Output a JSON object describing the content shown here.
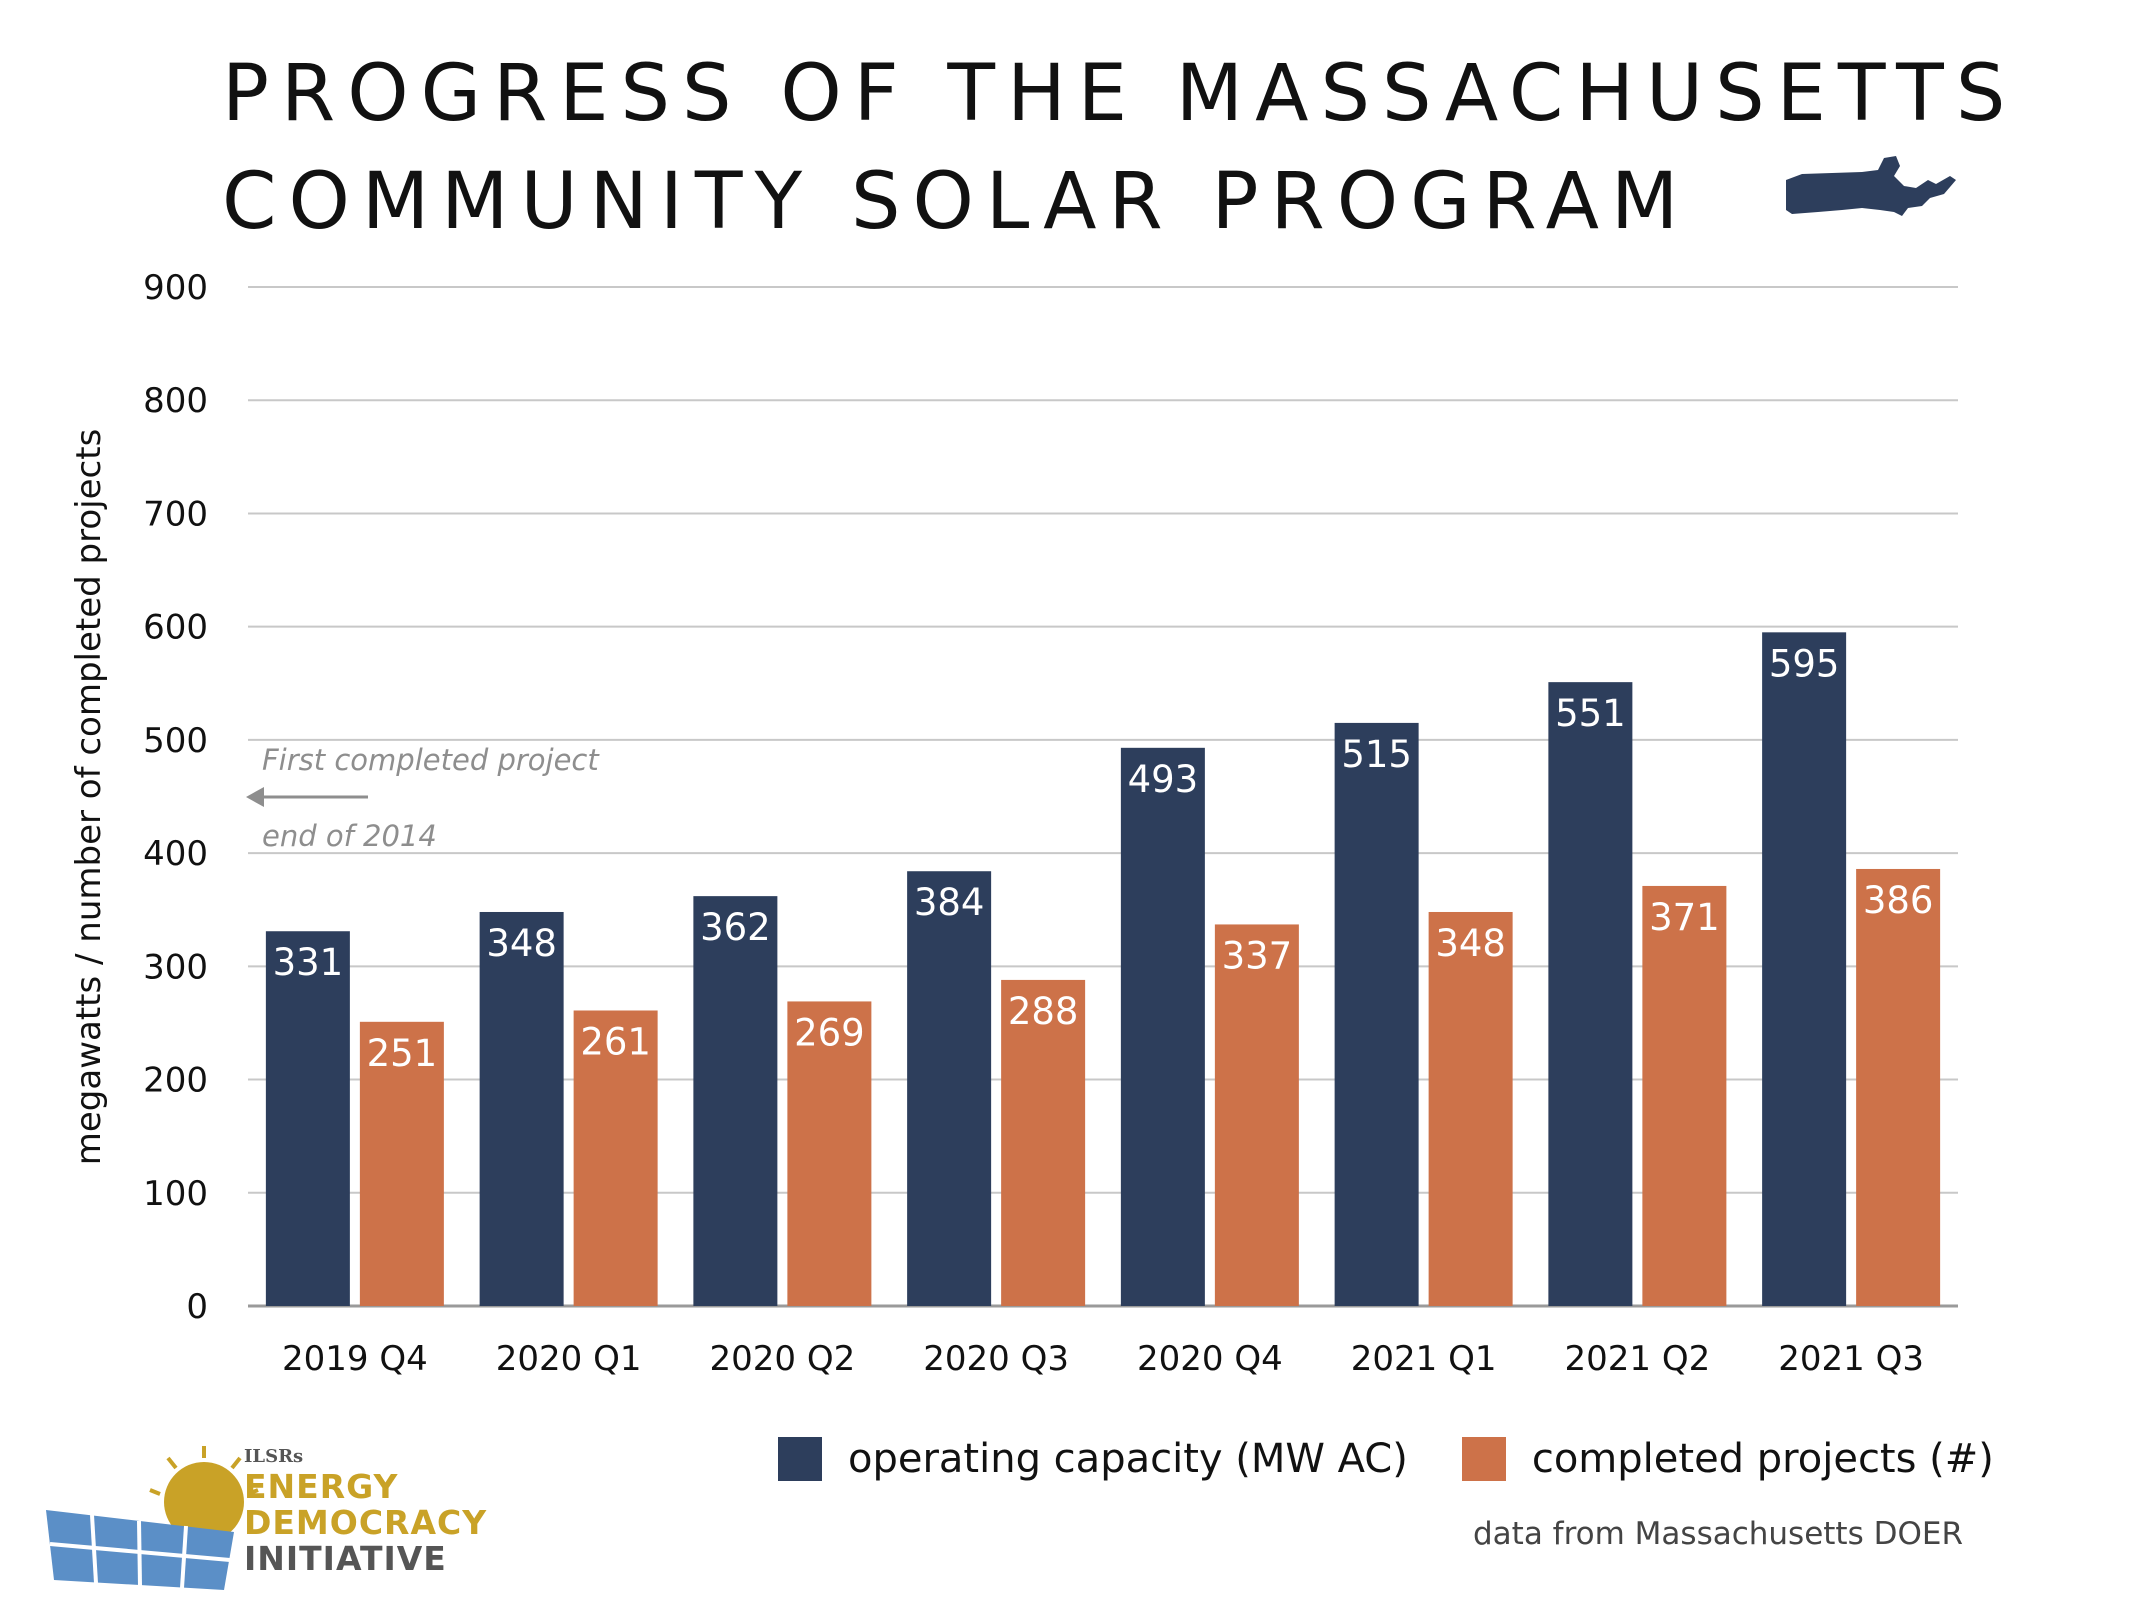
{
  "title": {
    "line1": "PROGRESS OF THE MASSACHUSETTS",
    "line2": "COMMUNITY SOLAR PROGRAM"
  },
  "icons": {
    "state_map": "massachusetts-map-icon",
    "logo": "solar-panel-sun-logo"
  },
  "chart_data": {
    "type": "bar",
    "categories": [
      "2019 Q4",
      "2020 Q1",
      "2020 Q2",
      "2020 Q3",
      "2020 Q4",
      "2021 Q1",
      "2021 Q2",
      "2021 Q3"
    ],
    "series": [
      {
        "name": "operating capacity (MW AC)",
        "color": "#2d3e5c",
        "values": [
          331,
          348,
          362,
          384,
          493,
          515,
          551,
          595
        ]
      },
      {
        "name": "completed projects (#)",
        "color": "#cd7249",
        "values": [
          251,
          261,
          269,
          288,
          337,
          348,
          371,
          386
        ]
      }
    ],
    "ylabel": "megawatts / number of completed projects",
    "ylim": [
      0,
      900
    ],
    "yticks": [
      0,
      100,
      200,
      300,
      400,
      500,
      600,
      700,
      800,
      900
    ],
    "grid": true,
    "legend_position": "bottom-right",
    "annotation": {
      "line1": "First completed project",
      "line2": "end of 2014"
    }
  },
  "source": "data from Massachusetts DOER",
  "logo": {
    "small": "ILSRs",
    "line1": "ENERGY",
    "line2": "DEMOCRACY",
    "line3": "INITIATIVE",
    "color_gold": "#c9a227",
    "color_gray": "#555555"
  }
}
